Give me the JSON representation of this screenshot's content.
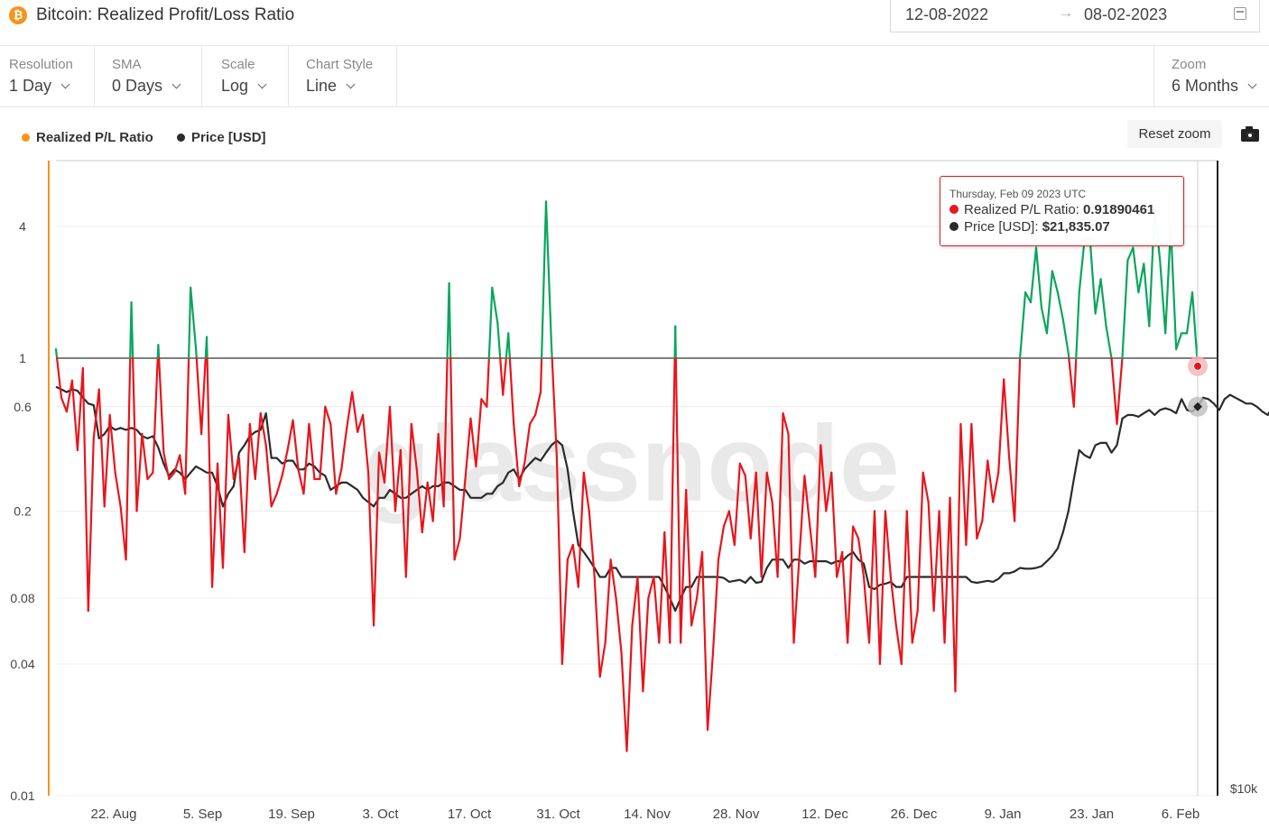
{
  "header": {
    "icon_glyph": "₿",
    "title": "Bitcoin: Realized Profit/Loss Ratio",
    "date_start": "12-08-2022",
    "date_arrow": "→",
    "date_end": "08-02-2023"
  },
  "toolbar": {
    "resolution_label": "Resolution",
    "resolution_value": "1 Day",
    "sma_label": "SMA",
    "sma_value": "0 Days",
    "scale_label": "Scale",
    "scale_value": "Log",
    "style_label": "Chart Style",
    "style_value": "Line",
    "zoom_label": "Zoom",
    "zoom_value": "6 Months"
  },
  "legend": {
    "ratio_label": "Realized P/L Ratio",
    "price_label": "Price [USD]"
  },
  "buttons": {
    "reset_zoom": "Reset zoom"
  },
  "tooltip": {
    "date": "Thursday, Feb 09 2023 UTC",
    "ratio_label": "Realized P/L Ratio:",
    "ratio_value": "0.91890461",
    "price_label": "Price [USD]:",
    "price_value": "$21,835.07"
  },
  "colors": {
    "profit": "#0aa55e",
    "loss": "#e8151b",
    "price": "#2b2b2b",
    "legend_ratio": "#f7931a",
    "legend_price": "#2b2b2b",
    "left_axis": "#f7931a"
  },
  "chart_data": {
    "type": "line",
    "watermark": "glassnode",
    "scale": "log",
    "grid": true,
    "legend_position": "top-left",
    "y_left": {
      "ticks": [
        0.01,
        0.04,
        0.08,
        0.2,
        0.6,
        1,
        4
      ],
      "range": [
        0.01,
        8
      ]
    },
    "y_right": {
      "ticks": [
        "$10k"
      ]
    },
    "reference_line": 1,
    "x_ticks": [
      "22. Aug",
      "5. Sep",
      "19. Sep",
      "3. Oct",
      "17. Oct",
      "31. Oct",
      "14. Nov",
      "28. Nov",
      "12. Dec",
      "26. Dec",
      "9. Jan",
      "23. Jan",
      "6. Feb"
    ],
    "series": [
      {
        "name": "Realized P/L Ratio",
        "values": [
          1.1,
          0.66,
          0.57,
          0.79,
          0.38,
          0.9,
          0.07,
          0.43,
          0.72,
          0.21,
          0.55,
          0.3,
          0.21,
          0.12,
          1.8,
          0.2,
          0.45,
          0.28,
          0.3,
          1.15,
          0.37,
          0.28,
          0.3,
          0.36,
          0.24,
          2.1,
          1.1,
          0.45,
          1.25,
          0.09,
          0.33,
          0.11,
          0.55,
          0.28,
          0.35,
          0.13,
          0.5,
          0.28,
          0.56,
          0.4,
          0.21,
          0.24,
          0.29,
          0.38,
          0.52,
          0.31,
          0.24,
          0.5,
          0.28,
          0.28,
          0.6,
          0.5,
          0.24,
          0.31,
          0.48,
          0.7,
          0.46,
          0.55,
          0.3,
          0.06,
          0.37,
          0.27,
          0.6,
          0.2,
          0.38,
          0.1,
          0.5,
          0.31,
          0.16,
          0.27,
          0.18,
          0.45,
          0.21,
          2.2,
          0.12,
          0.15,
          0.28,
          0.53,
          0.32,
          0.65,
          0.6,
          2.1,
          1.45,
          0.68,
          1.3,
          0.5,
          0.26,
          0.33,
          0.5,
          0.55,
          0.7,
          5.2,
          1.15,
          0.35,
          0.04,
          0.12,
          0.14,
          0.09,
          0.3,
          0.2,
          0.1,
          0.035,
          0.05,
          0.12,
          0.08,
          0.045,
          0.016,
          0.06,
          0.1,
          0.03,
          0.08,
          0.1,
          0.05,
          0.16,
          0.05,
          1.4,
          0.05,
          0.25,
          0.06,
          0.08,
          0.13,
          0.02,
          0.045,
          0.12,
          0.17,
          0.2,
          0.14,
          0.33,
          0.29,
          0.15,
          0.3,
          0.1,
          0.3,
          0.22,
          0.1,
          0.56,
          0.45,
          0.05,
          0.12,
          0.29,
          0.17,
          0.1,
          0.4,
          0.2,
          0.3,
          0.1,
          0.13,
          0.05,
          0.17,
          0.15,
          0.1,
          0.05,
          0.2,
          0.04,
          0.2,
          0.1,
          0.06,
          0.04,
          0.2,
          0.05,
          0.07,
          0.3,
          0.22,
          0.07,
          0.2,
          0.05,
          0.23,
          0.03,
          0.5,
          0.14,
          0.5,
          0.15,
          0.18,
          0.34,
          0.22,
          0.3,
          0.8,
          0.35,
          0.18,
          1.0,
          2.0,
          1.8,
          3.2,
          1.7,
          1.3,
          2.5,
          2.0,
          1.5,
          1.05,
          0.6,
          2.0,
          3.5,
          3.5,
          1.6,
          2.3,
          1.4,
          1.0,
          0.5,
          1.0,
          2.8,
          3.2,
          2.0,
          2.7,
          1.4,
          4.8,
          2.8,
          1.3,
          4.0,
          1.1,
          1.3,
          1.3,
          2.0,
          0.9189
        ]
      },
      {
        "name": "Price [USD]",
        "values": [
          0.74,
          0.72,
          0.7,
          0.72,
          0.71,
          0.66,
          0.62,
          0.61,
          0.43,
          0.45,
          0.49,
          0.47,
          0.48,
          0.47,
          0.48,
          0.47,
          0.44,
          0.43,
          0.44,
          0.39,
          0.33,
          0.29,
          0.31,
          0.3,
          0.28,
          0.3,
          0.32,
          0.31,
          0.3,
          0.3,
          0.26,
          0.21,
          0.24,
          0.26,
          0.37,
          0.4,
          0.44,
          0.46,
          0.47,
          0.56,
          0.35,
          0.35,
          0.33,
          0.34,
          0.34,
          0.31,
          0.31,
          0.33,
          0.32,
          0.3,
          0.29,
          0.25,
          0.26,
          0.27,
          0.27,
          0.26,
          0.25,
          0.23,
          0.22,
          0.21,
          0.23,
          0.23,
          0.25,
          0.24,
          0.23,
          0.23,
          0.24,
          0.25,
          0.26,
          0.25,
          0.26,
          0.26,
          0.27,
          0.27,
          0.26,
          0.25,
          0.25,
          0.23,
          0.23,
          0.23,
          0.24,
          0.24,
          0.26,
          0.27,
          0.3,
          0.31,
          0.28,
          0.31,
          0.33,
          0.35,
          0.34,
          0.37,
          0.4,
          0.42,
          0.4,
          0.31,
          0.2,
          0.14,
          0.13,
          0.12,
          0.11,
          0.1,
          0.1,
          0.11,
          0.11,
          0.1,
          0.1,
          0.1,
          0.1,
          0.1,
          0.1,
          0.1,
          0.1,
          0.09,
          0.08,
          0.07,
          0.08,
          0.09,
          0.09,
          0.1,
          0.1,
          0.1,
          0.1,
          0.1,
          0.099,
          0.095,
          0.096,
          0.097,
          0.094,
          0.1,
          0.094,
          0.095,
          0.11,
          0.12,
          0.12,
          0.12,
          0.11,
          0.12,
          0.12,
          0.115,
          0.118,
          0.118,
          0.118,
          0.118,
          0.115,
          0.118,
          0.118,
          0.125,
          0.13,
          0.12,
          0.115,
          0.09,
          0.088,
          0.092,
          0.093,
          0.095,
          0.09,
          0.09,
          0.1,
          0.1,
          0.1,
          0.1,
          0.1,
          0.1,
          0.1,
          0.1,
          0.1,
          0.1,
          0.1,
          0.1,
          0.095,
          0.094,
          0.095,
          0.096,
          0.095,
          0.098,
          0.104,
          0.104,
          0.106,
          0.11,
          0.109,
          0.109,
          0.11,
          0.112,
          0.118,
          0.125,
          0.135,
          0.16,
          0.2,
          0.28,
          0.38,
          0.36,
          0.35,
          0.4,
          0.41,
          0.41,
          0.37,
          0.4,
          0.53,
          0.55,
          0.55,
          0.54,
          0.56,
          0.58,
          0.55,
          0.58,
          0.59,
          0.58,
          0.56,
          0.65,
          0.58,
          0.57,
          0.6,
          0.66,
          0.65,
          0.62,
          0.58,
          0.65,
          0.68,
          0.66,
          0.64,
          0.62,
          0.62,
          0.6,
          0.57,
          0.55,
          0.6,
          0.58,
          0.44
        ]
      }
    ]
  }
}
